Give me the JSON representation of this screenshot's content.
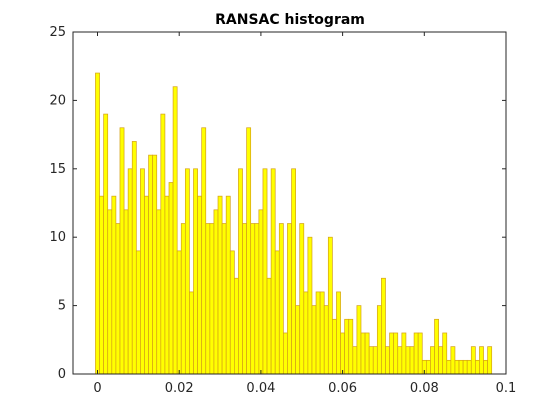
{
  "chart_data": {
    "type": "bar",
    "title": "RANSAC histogram",
    "xlabel": "",
    "ylabel": "",
    "xlim": [
      -0.006,
      0.1
    ],
    "ylim": [
      0,
      25
    ],
    "x_ticks": [
      0,
      0.02,
      0.04,
      0.06,
      0.08,
      0.1
    ],
    "x_tick_labels": [
      "0",
      "0.02",
      "0.04",
      "0.06",
      "0.08",
      "0.1"
    ],
    "y_ticks": [
      0,
      5,
      10,
      15,
      20,
      25
    ],
    "y_tick_labels": [
      "0",
      "5",
      "10",
      "15",
      "20",
      "25"
    ],
    "grid": false,
    "bin_width": 0.001,
    "x": [
      0.0,
      0.001,
      0.002,
      0.003,
      0.004,
      0.005,
      0.006,
      0.007,
      0.008,
      0.009,
      0.01,
      0.011,
      0.012,
      0.013,
      0.014,
      0.015,
      0.016,
      0.017,
      0.018,
      0.019,
      0.02,
      0.021,
      0.022,
      0.023,
      0.024,
      0.025,
      0.026,
      0.027,
      0.028,
      0.029,
      0.03,
      0.031,
      0.032,
      0.033,
      0.034,
      0.035,
      0.036,
      0.037,
      0.038,
      0.039,
      0.04,
      0.041,
      0.042,
      0.043,
      0.044,
      0.045,
      0.046,
      0.047,
      0.048,
      0.049,
      0.05,
      0.051,
      0.052,
      0.053,
      0.054,
      0.055,
      0.056,
      0.057,
      0.058,
      0.059,
      0.06,
      0.061,
      0.062,
      0.063,
      0.064,
      0.065,
      0.066,
      0.067,
      0.068,
      0.069,
      0.07,
      0.071,
      0.072,
      0.073,
      0.074,
      0.075,
      0.076,
      0.077,
      0.078,
      0.079,
      0.08,
      0.081,
      0.082,
      0.083,
      0.084,
      0.085,
      0.086,
      0.087,
      0.088,
      0.089,
      0.09,
      0.091,
      0.092,
      0.093,
      0.094,
      0.095,
      0.096
    ],
    "values": [
      22,
      13,
      19,
      12,
      13,
      11,
      18,
      12,
      15,
      17,
      9,
      15,
      13,
      16,
      16,
      12,
      19,
      13,
      14,
      21,
      9,
      11,
      15,
      6,
      15,
      13,
      18,
      11,
      11,
      12,
      13,
      11,
      13,
      9,
      7,
      15,
      11,
      18,
      11,
      11,
      12,
      15,
      7,
      15,
      9,
      11,
      3,
      11,
      15,
      5,
      11,
      6,
      10,
      5,
      6,
      6,
      5,
      10,
      4,
      6,
      3,
      4,
      4,
      2,
      5,
      3,
      3,
      2,
      2,
      5,
      7,
      2,
      3,
      3,
      2,
      3,
      2,
      2,
      3,
      3,
      1,
      1,
      2,
      4,
      2,
      3,
      1,
      2,
      1,
      1,
      1,
      1,
      2,
      1,
      2,
      1,
      2
    ],
    "colors": {
      "bar_fill": "#ffff00",
      "bar_edge": "#d4a017",
      "axis": "#262626",
      "background": "#ffffff"
    }
  }
}
